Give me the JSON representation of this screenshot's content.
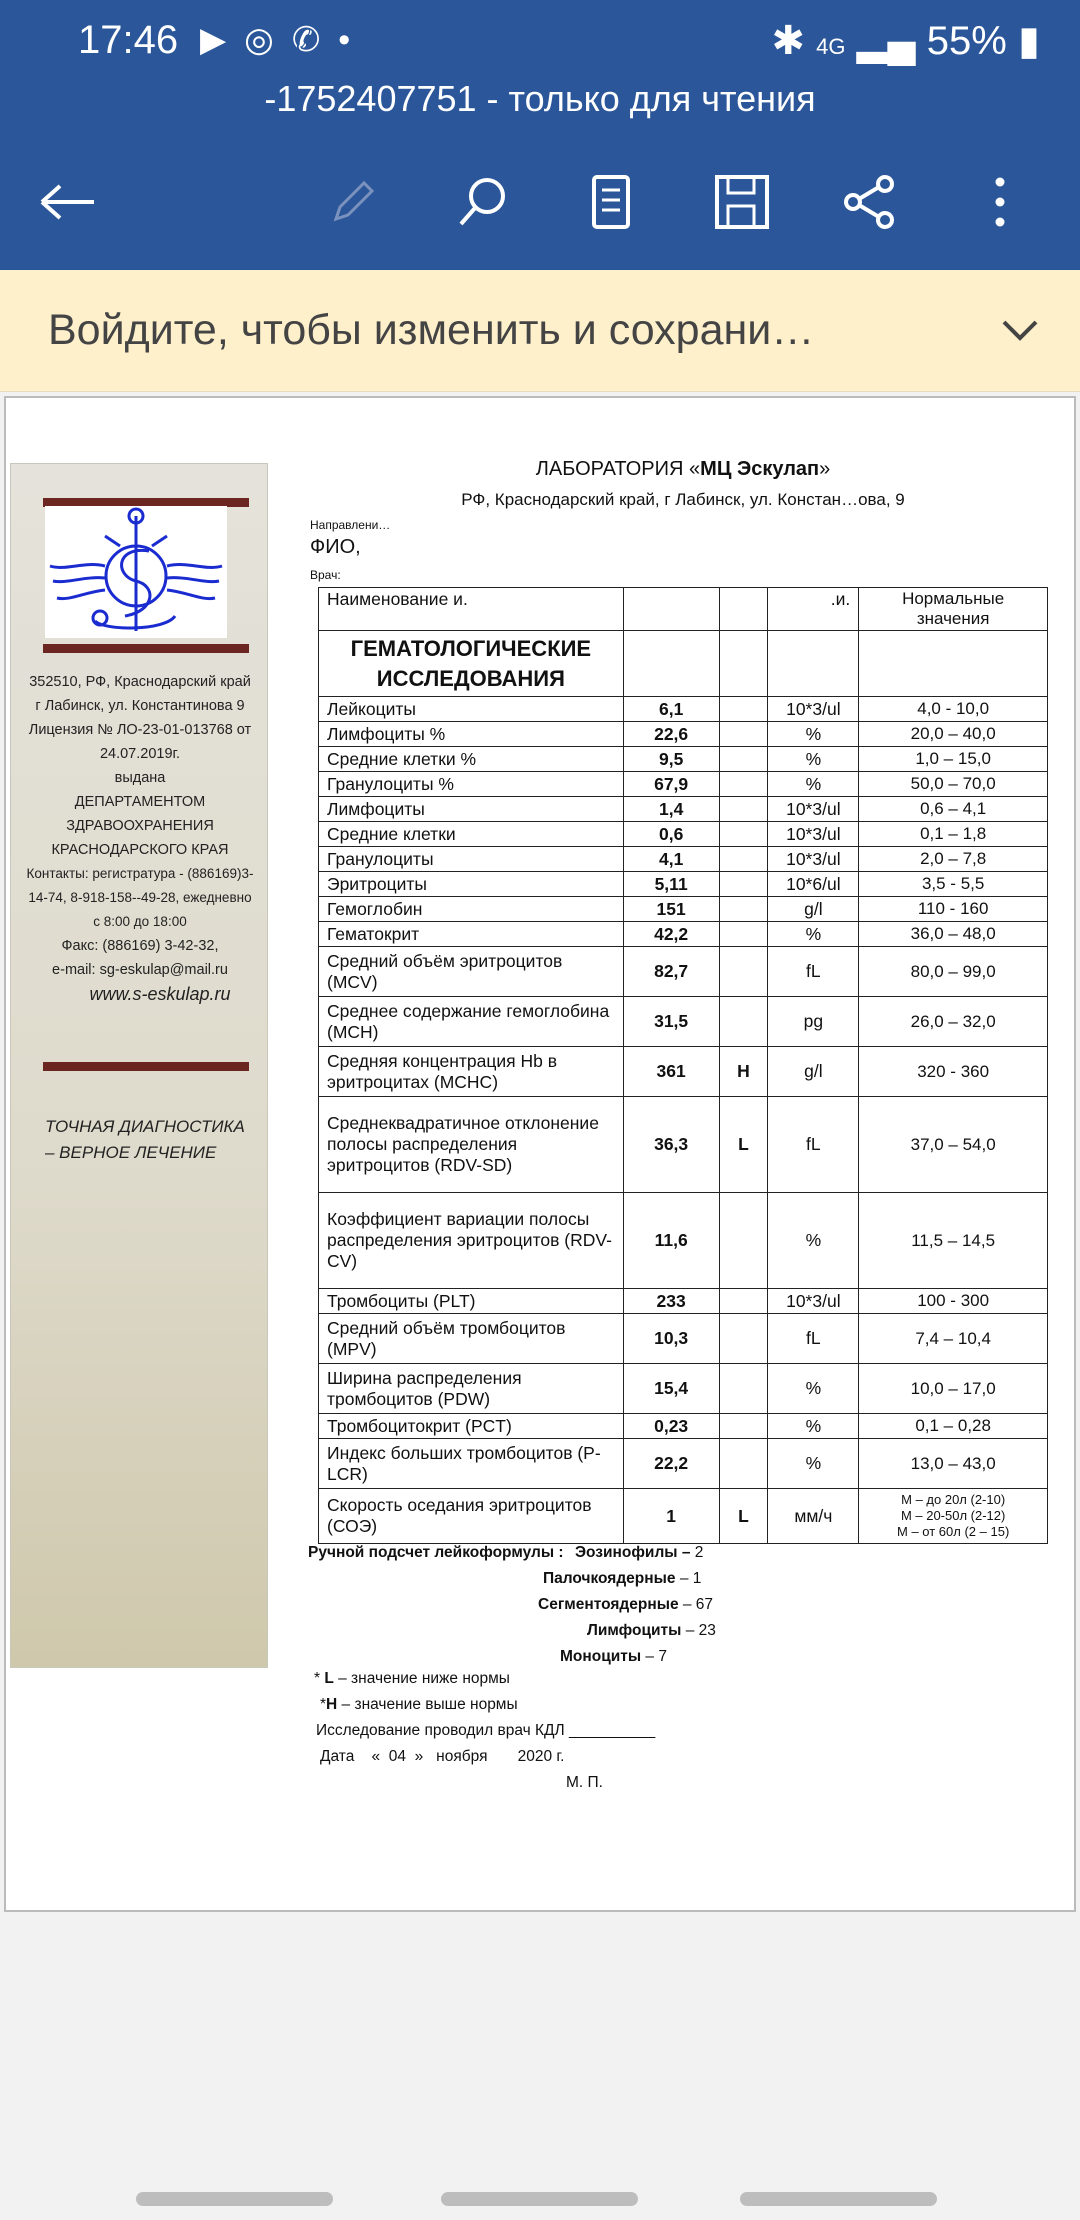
{
  "status": {
    "time": "17:46",
    "battery": "55%",
    "network": "4G"
  },
  "app": {
    "title": "-1752407751 - только для чтения",
    "banner": "Войдите, чтобы изменить и сохрани…"
  },
  "colors": {
    "appbar": "#2b579a",
    "banner": "#fdf0cb",
    "accent_bar": "#6b2622",
    "logo": "#1a2bd0"
  },
  "doc": {
    "lab_prefix": "ЛАБОРАТОРИЯ «",
    "lab_name": "МЦ Эскулап",
    "lab_suffix": "»",
    "address": "РФ, Краснодарский край, г Лабинск, ул. Констан…ова, 9",
    "direction": "Направлени…",
    "fio": "ФИО, ",
    "doctor": "Врач:",
    "sidebar": {
      "lines": [
        "352510, РФ, Краснодарский край",
        "г Лабинск, ул. Константинова 9",
        "Лицензия № ЛО-23-01-013768 от 24.07.2019г.",
        "выдана",
        "ДЕПАРТАМЕНТОМ ЗДРАВООХРАНЕНИЯ КРАСНОДАРСКОГО КРАЯ",
        "Контакты: регистратура - (886169)3-14-74,   8-918-158--49-28, ежедневно с 8:00 до 18:00",
        "Факс: (886169) 3-42-32,",
        "e-mail: sg-eskulap@mail.ru"
      ],
      "website": "www.s-eskulap.ru",
      "slogan": "ТОЧНАЯ ДИАГНОСТИКА – ВЕРНОЕ ЛЕЧЕНИЕ"
    },
    "table": {
      "header": {
        "name": "Наименование и.",
        "unit": ".и.",
        "norm": "Нормальные значения"
      },
      "section": "ГЕМАТОЛОГИЧЕСКИЕ ИССЛЕДОВАНИЯ",
      "rows": [
        {
          "name": "Лейкоциты",
          "value": "6,1",
          "flag": "",
          "unit": "10*3/ul",
          "norm": "4,0 - 10,0"
        },
        {
          "name": "Лимфоциты %",
          "value": "22,6",
          "flag": "",
          "unit": "%",
          "norm": "20,0 – 40,0"
        },
        {
          "name": "Средние клетки %",
          "value": "9,5",
          "flag": "",
          "unit": "%",
          "norm": "1,0 – 15,0"
        },
        {
          "name": "Гранулоциты %",
          "value": "67,9",
          "flag": "",
          "unit": "%",
          "norm": "50,0 – 70,0"
        },
        {
          "name": "Лимфоциты",
          "value": "1,4",
          "flag": "",
          "unit": "10*3/ul",
          "norm": "0,6 – 4,1"
        },
        {
          "name": "Средние клетки",
          "value": "0,6",
          "flag": "",
          "unit": "10*3/ul",
          "norm": "0,1 – 1,8"
        },
        {
          "name": "Гранулоциты",
          "value": "4,1",
          "flag": "",
          "unit": "10*3/ul",
          "norm": "2,0 – 7,8"
        },
        {
          "name": "Эритроциты",
          "value": "5,11",
          "flag": "",
          "unit": "10*6/ul",
          "norm": "3,5 - 5,5"
        },
        {
          "name": "Гемоглобин",
          "value": "151",
          "flag": "",
          "unit": "g/l",
          "norm": "110 - 160"
        },
        {
          "name": "Гематокрит",
          "value": "42,2",
          "flag": "",
          "unit": "%",
          "norm": "36,0 – 48,0"
        },
        {
          "name": "Средний объём эритроцитов (MCV)",
          "value": "82,7",
          "flag": "",
          "unit": "fL",
          "norm": "80,0 – 99,0"
        },
        {
          "name": "Среднее содержание гемоглобина (MCH)",
          "value": "31,5",
          "flag": "",
          "unit": "pg",
          "norm": "26,0 – 32,0"
        },
        {
          "name": "Средняя концентрация  Hb в эритроцитах (MCHC)",
          "value": "361",
          "flag": "H",
          "unit": "g/l",
          "norm": "320 - 360"
        },
        {
          "name": "Среднеквадратичное отклонение полосы распределения эритроцитов (RDV-SD)",
          "value": "36,3",
          "flag": "L",
          "unit": "fL",
          "norm": "37,0 – 54,0"
        },
        {
          "name": "Коэффициент вариации полосы распределения эритроцитов (RDV-CV)",
          "value": "11,6",
          "flag": "",
          "unit": "%",
          "norm": "11,5 – 14,5"
        },
        {
          "name": "Тромбоциты  (PLT)",
          "value": "233",
          "flag": "",
          "unit": "10*3/ul",
          "norm": "100 - 300"
        },
        {
          "name": "Средний объём тромбоцитов (MPV)",
          "value": "10,3",
          "flag": "",
          "unit": "fL",
          "norm": "7,4 – 10,4"
        },
        {
          "name": "Ширина распределения тромбоцитов (PDW)",
          "value": "15,4",
          "flag": "",
          "unit": "%",
          "norm": "10,0 – 17,0"
        },
        {
          "name": "Тромбоцитокрит (PCT)",
          "value": "0,23",
          "flag": "",
          "unit": "%",
          "norm": "0,1 – 0,28"
        },
        {
          "name": "Индекс больших тромбоцитов (P-LCR)",
          "value": "22,2",
          "flag": "",
          "unit": "%",
          "norm": "13,0 – 43,0"
        },
        {
          "name": "Скорость оседания эритроцитов (СОЭ)",
          "value": "1",
          "flag": "L",
          "unit": "мм/ч",
          "norm": "М – до 20л (2-10)\nМ – 20-50л (2-12)\nМ – от 60л  (2 – 15)"
        }
      ]
    },
    "manual": {
      "label": "Ручной подсчет лейкоформулы :",
      "items": [
        {
          "name": "Эозинофилы –",
          "value": "2"
        },
        {
          "name": "Палочкоядерные",
          "value": "– 1"
        },
        {
          "name": "Сегментоядерные",
          "value": "– 67"
        },
        {
          "name": "Лимфоциты",
          "value": "– 23"
        },
        {
          "name": "Моноциты",
          "value": "– 7"
        }
      ]
    },
    "legend_l": "значение ниже нормы",
    "legend_h": "значение выше нормы",
    "performed": "Исследование проводил врач КДЛ __________",
    "date": "Дата    «  04  »   ноября       2020 г.",
    "stamp": "М. П."
  }
}
